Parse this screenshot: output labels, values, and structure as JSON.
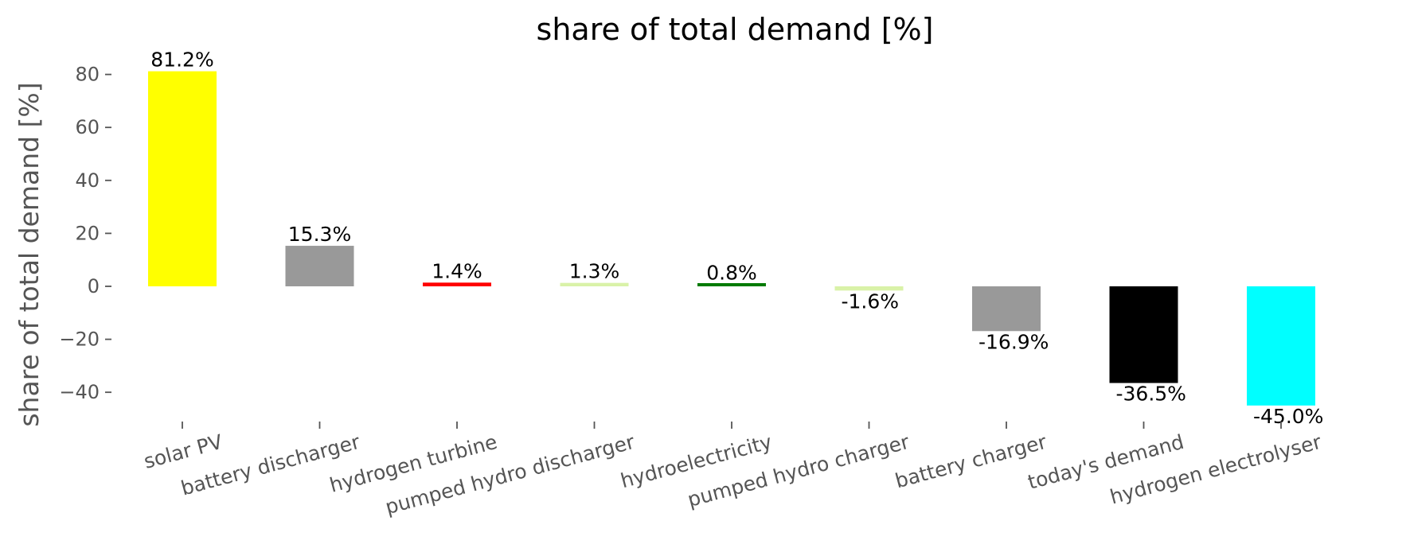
{
  "chart_data": {
    "type": "bar",
    "title": "share of total demand [%]",
    "xlabel": "",
    "ylabel": "share of total demand [%]",
    "ylim": [
      -52,
      88
    ],
    "yticks": [
      -40,
      -20,
      0,
      20,
      40,
      60,
      80
    ],
    "ytick_labels": [
      "−40",
      "−20",
      "0",
      "20",
      "40",
      "60",
      "80"
    ],
    "grid": false,
    "categories": [
      "solar PV",
      "battery discharger",
      "hydrogen turbine",
      "pumped hydro discharger",
      "hydroelectricity",
      "pumped hydro charger",
      "battery charger",
      "today's demand",
      "hydrogen electrolyser"
    ],
    "values": [
      81.2,
      15.3,
      1.4,
      1.3,
      0.8,
      -1.6,
      -16.9,
      -36.5,
      -45.0
    ],
    "value_labels": [
      "81.2%",
      "15.3%",
      "1.4%",
      "1.3%",
      "0.8%",
      "-1.6%",
      "-16.9%",
      "-36.5%",
      "-45.0%"
    ],
    "colors": [
      "#ffff00",
      "#999999",
      "#ff0000",
      "#d9f2a8",
      "#007a00",
      "#d9f2a8",
      "#999999",
      "#000000",
      "#00ffff"
    ]
  }
}
